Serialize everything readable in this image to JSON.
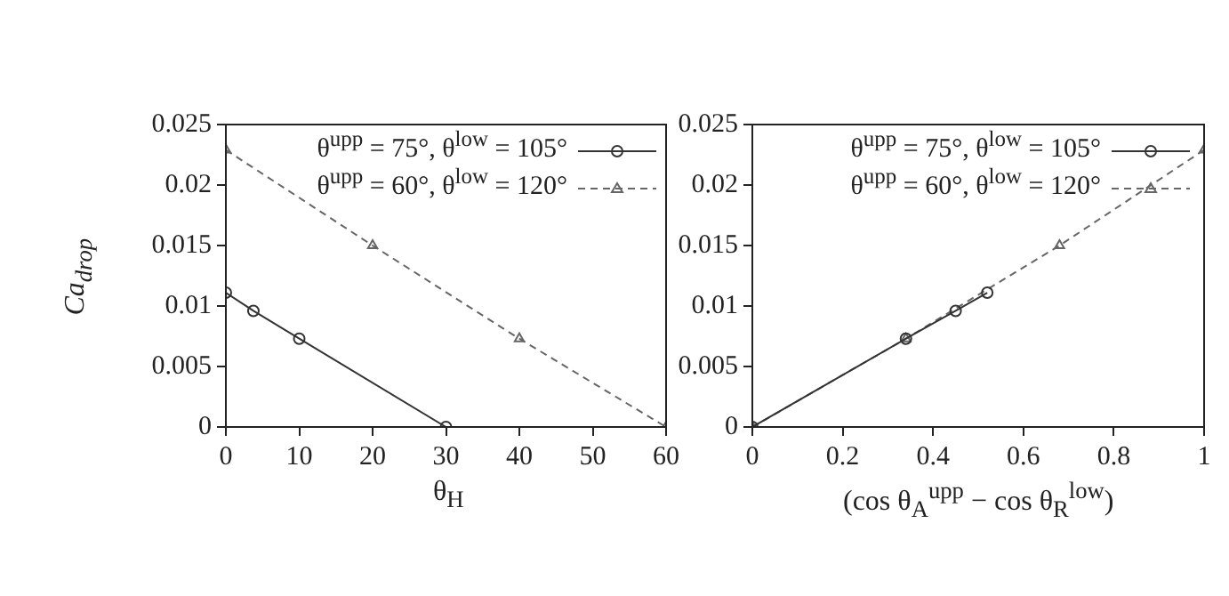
{
  "chart_data": [
    {
      "type": "line",
      "xlabel": "θ$_{H}$",
      "ylabel": "Ca$_{drop}$",
      "xlim": [
        0,
        60
      ],
      "xticks": [
        0,
        10,
        20,
        30,
        40,
        50,
        60
      ],
      "ylim": [
        0,
        0.025
      ],
      "yticks": [
        0,
        0.005,
        0.01,
        0.015,
        0.02,
        0.025
      ],
      "legend": "top right",
      "series": [
        {
          "name": "θ$^{upp}$ = 75°, θ$^{low}$ = 105°",
          "color": "#333333",
          "marker": "circle",
          "line_style": "solid",
          "x": [
            0,
            3.75,
            10,
            30
          ],
          "values": [
            0.0111,
            0.0096,
            0.0073,
            0
          ]
        },
        {
          "name": "θ$^{upp}$ = 60°, θ$^{low}$ = 120°",
          "color": "#666666",
          "marker": "triangle",
          "line_style": "dashed",
          "x": [
            0,
            20,
            40,
            60
          ],
          "values": [
            0.0229,
            0.015,
            0.0073,
            0
          ]
        }
      ]
    },
    {
      "type": "line",
      "xlabel": "(cos θ$_{A}$$^{upp}$ − cos θ$_{R}$$^{low}$)",
      "xlim": [
        0,
        1
      ],
      "xticks": [
        0,
        0.2,
        0.4,
        0.6,
        0.8,
        1
      ],
      "ylim": [
        0,
        0.025
      ],
      "yticks": [
        0,
        0.005,
        0.01,
        0.015,
        0.02,
        0.025
      ],
      "legend": "top right",
      "series": [
        {
          "name": "θ$^{upp}$ = 75°, θ$^{low}$ = 105°",
          "color": "#333333",
          "marker": "circle",
          "line_style": "solid",
          "x": [
            0,
            0.34,
            0.45,
            0.52
          ],
          "values": [
            0,
            0.0073,
            0.0096,
            0.0111
          ]
        },
        {
          "name": "θ$^{upp}$ = 60°, θ$^{low}$ = 120°",
          "color": "#666666",
          "marker": "triangle",
          "line_style": "dashed",
          "x": [
            0,
            0.34,
            0.68,
            1
          ],
          "values": [
            0,
            0.0073,
            0.015,
            0.0229
          ]
        }
      ]
    }
  ]
}
